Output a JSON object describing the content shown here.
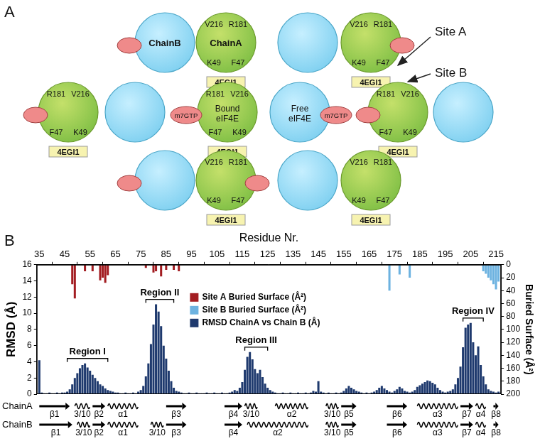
{
  "diagram": {
    "panel": "A",
    "chain_a": "ChainA",
    "chain_b": "ChainB",
    "bound": "Bound eIF4E",
    "free": "Free eIF4E",
    "ligand": "m7GTP",
    "inhibitor": "4EGI1",
    "residues": [
      "V216",
      "R181",
      "K49",
      "F47"
    ],
    "sites": [
      "Site A",
      "Site B"
    ]
  },
  "chart_data": {
    "type": "bar",
    "panel": "B",
    "x_label": "Residue Nr.",
    "y_label": "RMSD (Å)",
    "y2_label": "Buried Surface (Å²)",
    "xlim": [
      34,
      217
    ],
    "xticks": [
      35,
      45,
      55,
      65,
      75,
      85,
      95,
      105,
      115,
      125,
      135,
      145,
      155,
      165,
      175,
      185,
      195,
      205,
      215
    ],
    "ylim": [
      0,
      16
    ],
    "yticks": [
      0,
      2,
      4,
      6,
      8,
      10,
      12,
      14,
      16
    ],
    "y2lim": [
      200,
      0
    ],
    "y2ticks": [
      0,
      20,
      40,
      60,
      80,
      100,
      120,
      140,
      160,
      180,
      200
    ],
    "grid": false,
    "series": [
      {
        "name": "Site A Buried Surface (Å²)",
        "color": "#a31d22",
        "axis": "y2",
        "x": [
          48,
          49,
          53,
          56,
          59,
          60,
          61,
          62,
          77,
          80,
          81,
          83,
          85,
          88,
          90
        ],
        "values": [
          30,
          52,
          10,
          10,
          24,
          20,
          28,
          16,
          5,
          12,
          10,
          18,
          8,
          8,
          10
        ]
      },
      {
        "name": "Site B Buried Surface (Å²)",
        "color": "#6cb2e0",
        "axis": "y2",
        "x": [
          173,
          177,
          181,
          210,
          211,
          212,
          213,
          214,
          215,
          216
        ],
        "values": [
          40,
          15,
          20,
          10,
          14,
          20,
          24,
          30,
          38,
          26
        ]
      },
      {
        "name": "RMSD ChainA vs Chain B (Å)",
        "color": "#1f3a6e",
        "x": [
          35,
          36,
          37,
          38,
          39,
          40,
          41,
          42,
          43,
          44,
          45,
          46,
          47,
          48,
          49,
          50,
          51,
          52,
          53,
          54,
          55,
          56,
          57,
          58,
          59,
          60,
          61,
          62,
          63,
          64,
          65,
          66,
          67,
          68,
          69,
          70,
          71,
          72,
          73,
          74,
          75,
          76,
          77,
          78,
          79,
          80,
          81,
          82,
          83,
          84,
          85,
          86,
          87,
          88,
          89,
          90,
          91,
          92,
          93,
          94,
          95,
          96,
          97,
          98,
          99,
          100,
          101,
          102,
          103,
          104,
          105,
          106,
          107,
          108,
          109,
          110,
          111,
          112,
          113,
          114,
          115,
          116,
          117,
          118,
          119,
          120,
          121,
          122,
          123,
          124,
          125,
          126,
          127,
          128,
          129,
          130,
          131,
          132,
          133,
          134,
          135,
          136,
          137,
          138,
          139,
          140,
          141,
          142,
          143,
          144,
          145,
          146,
          147,
          148,
          149,
          150,
          151,
          152,
          153,
          154,
          155,
          156,
          157,
          158,
          159,
          160,
          161,
          162,
          163,
          164,
          165,
          166,
          167,
          168,
          169,
          170,
          171,
          172,
          173,
          174,
          175,
          176,
          177,
          178,
          179,
          180,
          181,
          182,
          183,
          184,
          185,
          186,
          187,
          188,
          189,
          190,
          191,
          192,
          193,
          194,
          195,
          196,
          197,
          198,
          199,
          200,
          201,
          202,
          203,
          204,
          205,
          206,
          207,
          208,
          209,
          210,
          211,
          212,
          213,
          214,
          215,
          216,
          217
        ],
        "values": [
          4.2,
          0.2,
          0.1,
          0.1,
          0.2,
          0.1,
          0.1,
          0.2,
          0.1,
          0.2,
          0.2,
          0.3,
          0.6,
          1.2,
          2.0,
          2.6,
          3.2,
          3.6,
          3.8,
          3.3,
          2.9,
          2.4,
          2.0,
          1.6,
          1.2,
          1.0,
          0.7,
          0.5,
          0.4,
          0.3,
          0.2,
          0.2,
          0.1,
          0.1,
          0.2,
          0.1,
          0.1,
          0.2,
          0.1,
          0.3,
          0.5,
          1.0,
          2.2,
          3.8,
          6.2,
          8.6,
          11.1,
          10.2,
          8.4,
          6.0,
          4.4,
          2.9,
          1.6,
          0.8,
          0.4,
          0.3,
          0.2,
          0.1,
          0.1,
          0.2,
          0.1,
          0.1,
          0.2,
          0.1,
          0.1,
          0.1,
          0.2,
          0.1,
          0.1,
          0.2,
          0.1,
          0.1,
          0.2,
          0.1,
          0.1,
          0.2,
          0.3,
          0.5,
          0.4,
          0.8,
          1.5,
          3.0,
          4.6,
          5.2,
          4.3,
          3.1,
          2.6,
          3.0,
          2.1,
          1.3,
          0.8,
          0.5,
          0.3,
          0.2,
          0.1,
          0.1,
          0.2,
          0.1,
          0.1,
          0.2,
          0.1,
          0.1,
          0.2,
          0.1,
          0.1,
          0.2,
          0.1,
          0.2,
          0.4,
          0.3,
          1.6,
          0.3,
          0.2,
          0.1,
          0.2,
          0.1,
          0.1,
          0.2,
          0.1,
          0.2,
          0.4,
          0.7,
          1.0,
          0.8,
          0.6,
          0.4,
          0.3,
          0.2,
          0.1,
          0.2,
          0.1,
          0.2,
          0.3,
          0.5,
          0.8,
          1.0,
          0.7,
          0.5,
          0.3,
          0.2,
          0.4,
          0.6,
          0.9,
          0.7,
          0.4,
          0.3,
          0.2,
          0.3,
          0.5,
          0.9,
          1.1,
          1.3,
          1.5,
          1.7,
          1.6,
          1.4,
          1.2,
          0.8,
          0.5,
          0.3,
          0.2,
          0.3,
          0.4,
          0.6,
          1.2,
          2.0,
          3.4,
          5.8,
          8.2,
          8.6,
          8.8,
          6.4,
          4.8,
          5.9,
          3.6,
          2.2,
          1.2,
          0.6,
          0.4,
          0.3,
          0.2,
          0.3,
          0.2
        ]
      }
    ],
    "annotations": [
      {
        "text": "Region I",
        "x": [
          46,
          62
        ]
      },
      {
        "text": "Region II",
        "x": [
          77,
          88
        ]
      },
      {
        "text": "Region III",
        "x": [
          116,
          125
        ]
      },
      {
        "text": "Region IV",
        "x": [
          202,
          210
        ]
      }
    ],
    "secondary_structure": [
      {
        "name": "ChainA",
        "elements": [
          {
            "label": "β1",
            "type": "strand",
            "start": 35,
            "end": 47
          },
          {
            "label": "3/10",
            "type": "helix",
            "start": 49,
            "end": 55
          },
          {
            "label": "β2",
            "type": "strand",
            "start": 56,
            "end": 61
          },
          {
            "label": "α1",
            "type": "helix",
            "start": 62,
            "end": 74
          },
          {
            "label": "β3",
            "type": "strand",
            "start": 85,
            "end": 93
          },
          {
            "label": "β4",
            "type": "strand",
            "start": 108,
            "end": 115
          },
          {
            "label": "3/10",
            "type": "helix",
            "start": 116,
            "end": 121
          },
          {
            "label": "α2",
            "type": "helix",
            "start": 128,
            "end": 141
          },
          {
            "label": "3/10",
            "type": "helix",
            "start": 148,
            "end": 153
          },
          {
            "label": "β5",
            "type": "strand",
            "start": 154,
            "end": 160
          },
          {
            "label": "β6",
            "type": "strand",
            "start": 172,
            "end": 180
          },
          {
            "label": "α3",
            "type": "helix",
            "start": 184,
            "end": 200
          },
          {
            "label": "β7",
            "type": "strand",
            "start": 201,
            "end": 206
          },
          {
            "label": "α4",
            "type": "helix",
            "start": 207,
            "end": 211
          },
          {
            "label": "β8",
            "type": "strand",
            "start": 214,
            "end": 216
          }
        ]
      },
      {
        "name": "ChainB",
        "elements": [
          {
            "label": "β1",
            "type": "strand",
            "start": 35,
            "end": 48
          },
          {
            "label": "3/10",
            "type": "helix",
            "start": 50,
            "end": 55
          },
          {
            "label": "β2",
            "type": "strand",
            "start": 56,
            "end": 61
          },
          {
            "label": "α1",
            "type": "helix",
            "start": 62,
            "end": 74
          },
          {
            "label": "3/10",
            "type": "helix",
            "start": 79,
            "end": 84
          },
          {
            "label": "β3",
            "type": "strand",
            "start": 85,
            "end": 93
          },
          {
            "label": "β4",
            "type": "strand",
            "start": 108,
            "end": 115
          },
          {
            "label": "α2",
            "type": "helix",
            "start": 117,
            "end": 141
          },
          {
            "label": "3/10",
            "type": "helix",
            "start": 148,
            "end": 153
          },
          {
            "label": "β5",
            "type": "strand",
            "start": 154,
            "end": 160
          },
          {
            "label": "β6",
            "type": "strand",
            "start": 172,
            "end": 180
          },
          {
            "label": "α3",
            "type": "helix",
            "start": 184,
            "end": 200
          },
          {
            "label": "β7",
            "type": "strand",
            "start": 201,
            "end": 206
          },
          {
            "label": "α4",
            "type": "helix",
            "start": 207,
            "end": 211
          },
          {
            "label": "β8",
            "type": "strand",
            "start": 214,
            "end": 216
          }
        ]
      }
    ]
  }
}
